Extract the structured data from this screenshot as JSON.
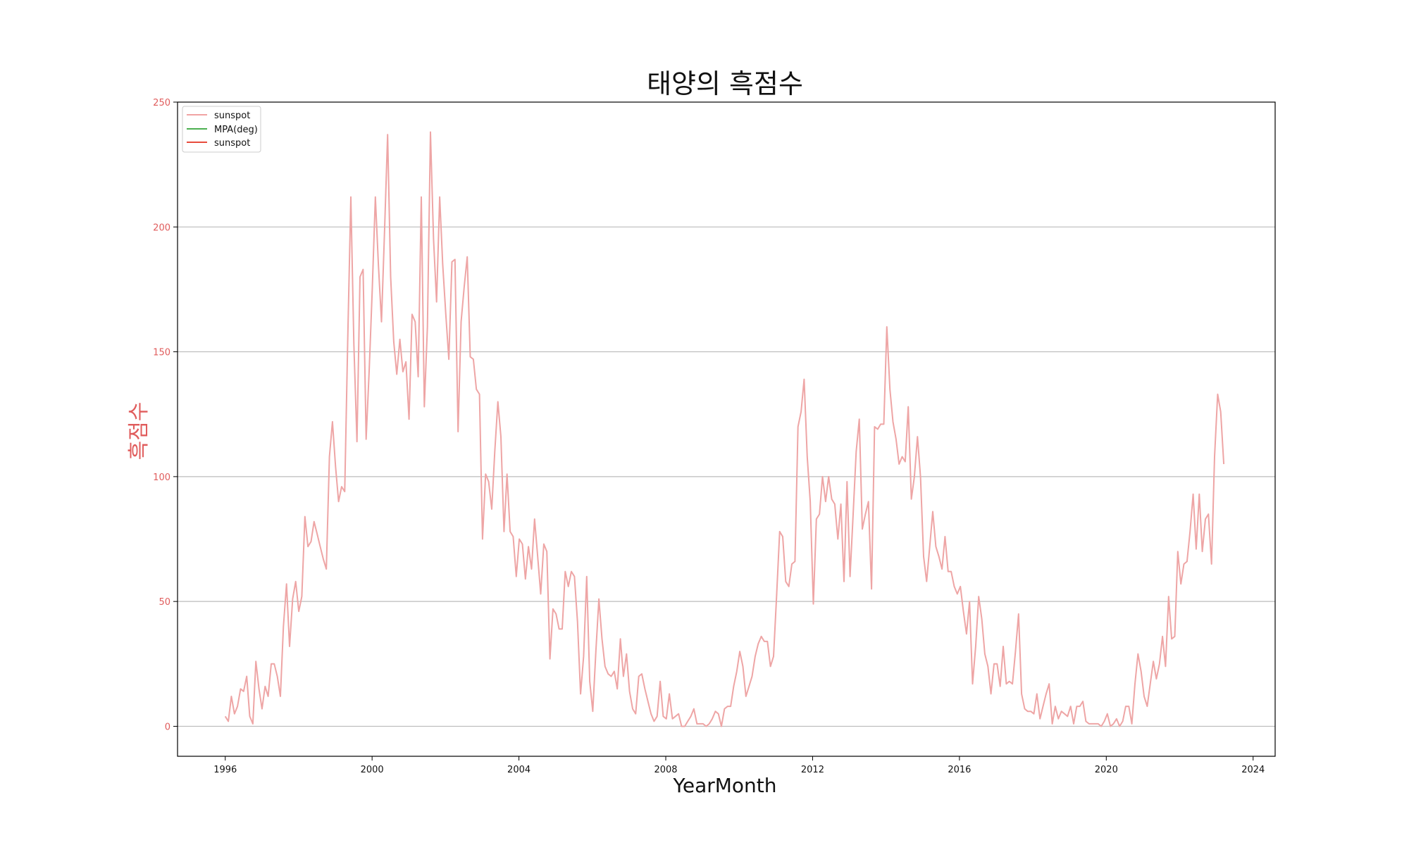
{
  "chart_data": {
    "type": "line",
    "title": "태양의 흑점수",
    "xlabel": "YearMonth",
    "ylabel": "흑점수",
    "xlim": [
      1994.7,
      2024.6
    ],
    "ylim": [
      -12,
      250
    ],
    "x_ticks": [
      1996,
      2000,
      2004,
      2008,
      2012,
      2016,
      2020,
      2024
    ],
    "y_ticks": [
      0,
      50,
      100,
      150,
      200,
      250
    ],
    "grid": "horizontal",
    "legend_position": "top-left",
    "legend": [
      {
        "label": "sunspot",
        "color": "#f0a3a3"
      },
      {
        "label": "MPA(deg)",
        "color": "#4caf50"
      },
      {
        "label": "sunspot",
        "color": "#e74c3c"
      }
    ],
    "colors": {
      "series": "#eea5a5",
      "axis_label": "#e05c5c",
      "grid": "#bbbbbb"
    },
    "series": [
      {
        "name": "sunspot",
        "start_year": 1996.0,
        "values": [
          4,
          2,
          12,
          5,
          8,
          15,
          14,
          20,
          4,
          1,
          26,
          15,
          7,
          16,
          12,
          25,
          25,
          20,
          12,
          40,
          57,
          32,
          51,
          58,
          46,
          52,
          84,
          72,
          74,
          82,
          77,
          72,
          67,
          63,
          108,
          122,
          104,
          90,
          96,
          94,
          155,
          212,
          153,
          114,
          180,
          183,
          115,
          143,
          175,
          212,
          185,
          162,
          198,
          237,
          180,
          154,
          141,
          155,
          142,
          146,
          123,
          165,
          162,
          140,
          212,
          128,
          160,
          238,
          195,
          170,
          212,
          185,
          165,
          147,
          186,
          187,
          118,
          162,
          176,
          188,
          148,
          147,
          135,
          133,
          75,
          101,
          98,
          87,
          110,
          130,
          116,
          78,
          101,
          78,
          76,
          60,
          75,
          73,
          59,
          72,
          63,
          83,
          68,
          53,
          73,
          70,
          27,
          47,
          45,
          39,
          39,
          62,
          56,
          62,
          60,
          42,
          13,
          28,
          60,
          18,
          6,
          30,
          51,
          35,
          24,
          21,
          20,
          22,
          15,
          35,
          20,
          29,
          14,
          7,
          5,
          20,
          21,
          15,
          10,
          5,
          2,
          4,
          18,
          4,
          3,
          13,
          3,
          4,
          5,
          0,
          0,
          2,
          4,
          7,
          1,
          1,
          1,
          0,
          1,
          3,
          6,
          5,
          0,
          7,
          8,
          8,
          16,
          22,
          30,
          24,
          12,
          16,
          20,
          28,
          33,
          36,
          34,
          34,
          24,
          28,
          52,
          78,
          76,
          58,
          56,
          65,
          66,
          120,
          126,
          139,
          108,
          90,
          49,
          83,
          85,
          100,
          90,
          100,
          91,
          89,
          75,
          89,
          58,
          98,
          60,
          85,
          110,
          123,
          79,
          85,
          90,
          55,
          120,
          119,
          121,
          121,
          160,
          135,
          122,
          115,
          105,
          108,
          106,
          128,
          91,
          100,
          116,
          100,
          68,
          58,
          72,
          86,
          72,
          68,
          63,
          76,
          62,
          62,
          56,
          53,
          56,
          46,
          37,
          50,
          17,
          32,
          52,
          43,
          29,
          24,
          13,
          25,
          25,
          16,
          32,
          17,
          18,
          17,
          30,
          45,
          13,
          7,
          6,
          6,
          5,
          13,
          3,
          8,
          13,
          17,
          1,
          8,
          3,
          6,
          5,
          4,
          8,
          1,
          8,
          8,
          10,
          2,
          1,
          1,
          1,
          1,
          0,
          2,
          5,
          0,
          1,
          3,
          0,
          2,
          8,
          8,
          1,
          17,
          29,
          22,
          12,
          8,
          17,
          26,
          19,
          25,
          36,
          24,
          52,
          35,
          36,
          70,
          57,
          65,
          66,
          78,
          93,
          71,
          93,
          70,
          83,
          85,
          65,
          108,
          133,
          126,
          105
        ]
      }
    ]
  }
}
